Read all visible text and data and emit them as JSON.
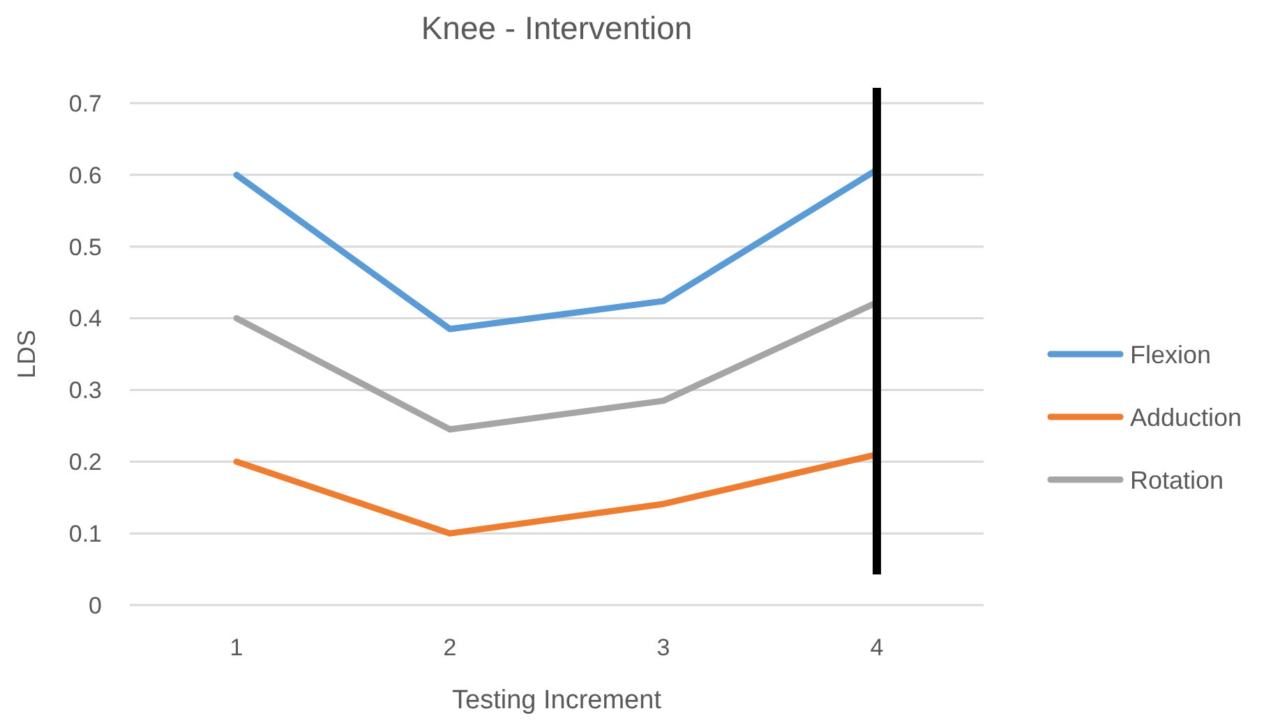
{
  "chart_data": {
    "type": "line",
    "title": "Knee - Intervention",
    "xlabel": "Testing Increment",
    "ylabel": "LDS",
    "categories": [
      "1",
      "2",
      "3",
      "4"
    ],
    "series": [
      {
        "name": "Flexion",
        "color": "#5b9bd5",
        "values": [
          0.6,
          0.385,
          0.424,
          0.607
        ]
      },
      {
        "name": "Adduction",
        "color": "#ed7d31",
        "values": [
          0.2,
          0.1,
          0.141,
          0.21
        ]
      },
      {
        "name": "Rotation",
        "color": "#a5a5a5",
        "values": [
          0.4,
          0.245,
          0.285,
          0.422
        ]
      }
    ],
    "ylim": [
      0,
      0.7
    ],
    "yticks": [
      0,
      0.1,
      0.2,
      0.3,
      0.4,
      0.5,
      0.6,
      0.7
    ],
    "grid": "y",
    "legend": "right",
    "ref_lines": [
      {
        "axis": "x",
        "value": "4",
        "color": "#000000"
      }
    ]
  }
}
